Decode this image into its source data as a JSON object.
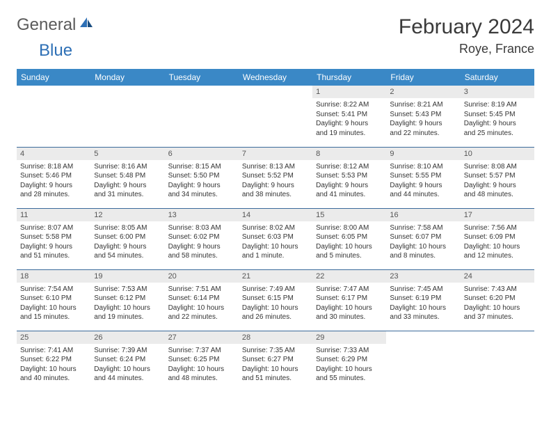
{
  "brand": {
    "part1": "General",
    "part2": "Blue"
  },
  "title": "February 2024",
  "location": "Roye, France",
  "colors": {
    "header_bg": "#3a88c6",
    "header_text": "#ffffff",
    "daynum_bg": "#ebebeb",
    "border": "#3a6a9a",
    "logo_gray": "#5a5a5a",
    "logo_blue": "#2d6fb5"
  },
  "weekdays": [
    "Sunday",
    "Monday",
    "Tuesday",
    "Wednesday",
    "Thursday",
    "Friday",
    "Saturday"
  ],
  "weeks": [
    [
      null,
      null,
      null,
      null,
      {
        "n": "1",
        "sr": "Sunrise: 8:22 AM",
        "ss": "Sunset: 5:41 PM",
        "d1": "Daylight: 9 hours",
        "d2": "and 19 minutes."
      },
      {
        "n": "2",
        "sr": "Sunrise: 8:21 AM",
        "ss": "Sunset: 5:43 PM",
        "d1": "Daylight: 9 hours",
        "d2": "and 22 minutes."
      },
      {
        "n": "3",
        "sr": "Sunrise: 8:19 AM",
        "ss": "Sunset: 5:45 PM",
        "d1": "Daylight: 9 hours",
        "d2": "and 25 minutes."
      }
    ],
    [
      {
        "n": "4",
        "sr": "Sunrise: 8:18 AM",
        "ss": "Sunset: 5:46 PM",
        "d1": "Daylight: 9 hours",
        "d2": "and 28 minutes."
      },
      {
        "n": "5",
        "sr": "Sunrise: 8:16 AM",
        "ss": "Sunset: 5:48 PM",
        "d1": "Daylight: 9 hours",
        "d2": "and 31 minutes."
      },
      {
        "n": "6",
        "sr": "Sunrise: 8:15 AM",
        "ss": "Sunset: 5:50 PM",
        "d1": "Daylight: 9 hours",
        "d2": "and 34 minutes."
      },
      {
        "n": "7",
        "sr": "Sunrise: 8:13 AM",
        "ss": "Sunset: 5:52 PM",
        "d1": "Daylight: 9 hours",
        "d2": "and 38 minutes."
      },
      {
        "n": "8",
        "sr": "Sunrise: 8:12 AM",
        "ss": "Sunset: 5:53 PM",
        "d1": "Daylight: 9 hours",
        "d2": "and 41 minutes."
      },
      {
        "n": "9",
        "sr": "Sunrise: 8:10 AM",
        "ss": "Sunset: 5:55 PM",
        "d1": "Daylight: 9 hours",
        "d2": "and 44 minutes."
      },
      {
        "n": "10",
        "sr": "Sunrise: 8:08 AM",
        "ss": "Sunset: 5:57 PM",
        "d1": "Daylight: 9 hours",
        "d2": "and 48 minutes."
      }
    ],
    [
      {
        "n": "11",
        "sr": "Sunrise: 8:07 AM",
        "ss": "Sunset: 5:58 PM",
        "d1": "Daylight: 9 hours",
        "d2": "and 51 minutes."
      },
      {
        "n": "12",
        "sr": "Sunrise: 8:05 AM",
        "ss": "Sunset: 6:00 PM",
        "d1": "Daylight: 9 hours",
        "d2": "and 54 minutes."
      },
      {
        "n": "13",
        "sr": "Sunrise: 8:03 AM",
        "ss": "Sunset: 6:02 PM",
        "d1": "Daylight: 9 hours",
        "d2": "and 58 minutes."
      },
      {
        "n": "14",
        "sr": "Sunrise: 8:02 AM",
        "ss": "Sunset: 6:03 PM",
        "d1": "Daylight: 10 hours",
        "d2": "and 1 minute."
      },
      {
        "n": "15",
        "sr": "Sunrise: 8:00 AM",
        "ss": "Sunset: 6:05 PM",
        "d1": "Daylight: 10 hours",
        "d2": "and 5 minutes."
      },
      {
        "n": "16",
        "sr": "Sunrise: 7:58 AM",
        "ss": "Sunset: 6:07 PM",
        "d1": "Daylight: 10 hours",
        "d2": "and 8 minutes."
      },
      {
        "n": "17",
        "sr": "Sunrise: 7:56 AM",
        "ss": "Sunset: 6:09 PM",
        "d1": "Daylight: 10 hours",
        "d2": "and 12 minutes."
      }
    ],
    [
      {
        "n": "18",
        "sr": "Sunrise: 7:54 AM",
        "ss": "Sunset: 6:10 PM",
        "d1": "Daylight: 10 hours",
        "d2": "and 15 minutes."
      },
      {
        "n": "19",
        "sr": "Sunrise: 7:53 AM",
        "ss": "Sunset: 6:12 PM",
        "d1": "Daylight: 10 hours",
        "d2": "and 19 minutes."
      },
      {
        "n": "20",
        "sr": "Sunrise: 7:51 AM",
        "ss": "Sunset: 6:14 PM",
        "d1": "Daylight: 10 hours",
        "d2": "and 22 minutes."
      },
      {
        "n": "21",
        "sr": "Sunrise: 7:49 AM",
        "ss": "Sunset: 6:15 PM",
        "d1": "Daylight: 10 hours",
        "d2": "and 26 minutes."
      },
      {
        "n": "22",
        "sr": "Sunrise: 7:47 AM",
        "ss": "Sunset: 6:17 PM",
        "d1": "Daylight: 10 hours",
        "d2": "and 30 minutes."
      },
      {
        "n": "23",
        "sr": "Sunrise: 7:45 AM",
        "ss": "Sunset: 6:19 PM",
        "d1": "Daylight: 10 hours",
        "d2": "and 33 minutes."
      },
      {
        "n": "24",
        "sr": "Sunrise: 7:43 AM",
        "ss": "Sunset: 6:20 PM",
        "d1": "Daylight: 10 hours",
        "d2": "and 37 minutes."
      }
    ],
    [
      {
        "n": "25",
        "sr": "Sunrise: 7:41 AM",
        "ss": "Sunset: 6:22 PM",
        "d1": "Daylight: 10 hours",
        "d2": "and 40 minutes."
      },
      {
        "n": "26",
        "sr": "Sunrise: 7:39 AM",
        "ss": "Sunset: 6:24 PM",
        "d1": "Daylight: 10 hours",
        "d2": "and 44 minutes."
      },
      {
        "n": "27",
        "sr": "Sunrise: 7:37 AM",
        "ss": "Sunset: 6:25 PM",
        "d1": "Daylight: 10 hours",
        "d2": "and 48 minutes."
      },
      {
        "n": "28",
        "sr": "Sunrise: 7:35 AM",
        "ss": "Sunset: 6:27 PM",
        "d1": "Daylight: 10 hours",
        "d2": "and 51 minutes."
      },
      {
        "n": "29",
        "sr": "Sunrise: 7:33 AM",
        "ss": "Sunset: 6:29 PM",
        "d1": "Daylight: 10 hours",
        "d2": "and 55 minutes."
      },
      null,
      null
    ]
  ]
}
